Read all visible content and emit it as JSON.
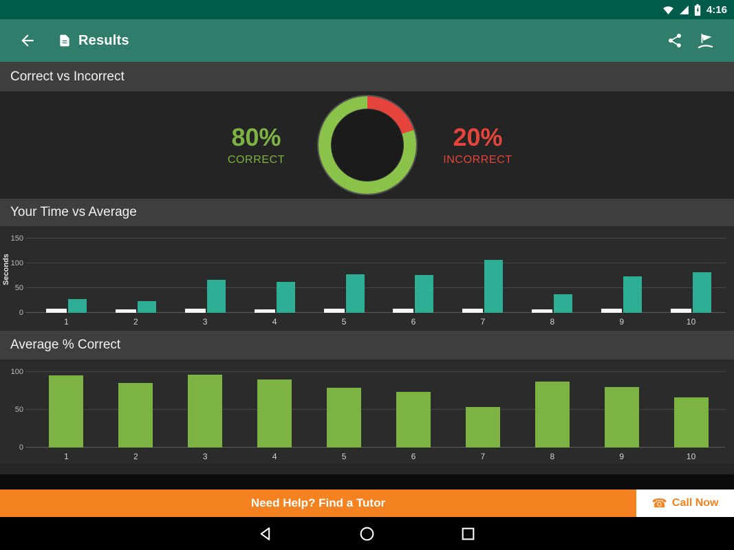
{
  "status_bar": {
    "time": "4:16"
  },
  "app_bar": {
    "title": "Results"
  },
  "banner": {
    "help_text": "Need Help? Find a Tutor",
    "call_text": "Call Now"
  },
  "colors": {
    "status_bar_green": "#005b4b",
    "app_bar_green": "#2f7d6a",
    "correct_green": "#7cb342",
    "ring_green": "#8bc34a",
    "incorrect_red": "#e5443c",
    "teal_bar": "#2fae96",
    "white_bar": "#f5f5f5",
    "banner_orange": "#f58220"
  },
  "chart_data": [
    {
      "type": "pie",
      "variant": "donut",
      "title": "Correct vs Incorrect",
      "slices": [
        {
          "label": "CORRECT",
          "pct_label": "80%",
          "value": 80,
          "color": "#8bc34a",
          "text_color": "#7cb342"
        },
        {
          "label": "INCORRECT",
          "pct_label": "20%",
          "value": 20,
          "color": "#e5443c",
          "text_color": "#e5443c"
        }
      ]
    },
    {
      "type": "bar",
      "title": "Your Time vs Average",
      "xlabel": "",
      "ylabel": "Seconds",
      "categories": [
        "1",
        "2",
        "3",
        "4",
        "5",
        "6",
        "7",
        "8",
        "9",
        "10"
      ],
      "yticks": [
        0,
        50,
        100,
        150
      ],
      "ylim": [
        0,
        160
      ],
      "grid": true,
      "legend_position": "none",
      "series": [
        {
          "name": "Your Time",
          "color": "#f5f5f5",
          "values": [
            8,
            7,
            8,
            7,
            8,
            8,
            9,
            7,
            8,
            8
          ]
        },
        {
          "name": "Average",
          "color": "#2fae96",
          "values": [
            28,
            24,
            66,
            62,
            78,
            77,
            107,
            38,
            74,
            82
          ]
        }
      ]
    },
    {
      "type": "bar",
      "title": "Average % Correct",
      "xlabel": "",
      "ylabel": "",
      "categories": [
        "1",
        "2",
        "3",
        "4",
        "5",
        "6",
        "7",
        "8",
        "9",
        "10"
      ],
      "yticks": [
        0,
        50,
        100
      ],
      "ylim": [
        0,
        115
      ],
      "grid": true,
      "legend_position": "none",
      "series": [
        {
          "name": "Average % Correct",
          "color": "#7cb342",
          "values": [
            95,
            85,
            96,
            90,
            79,
            74,
            54,
            87,
            80,
            66
          ]
        }
      ]
    }
  ]
}
